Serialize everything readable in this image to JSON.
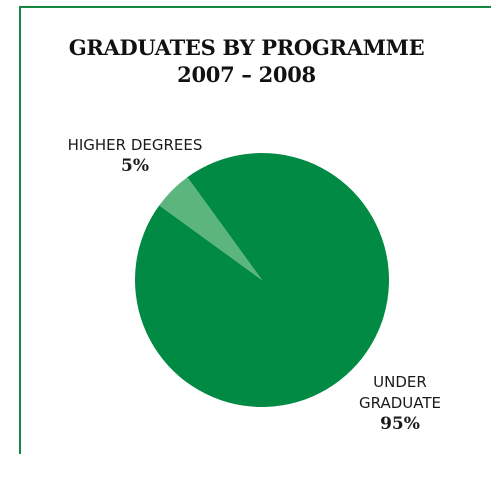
{
  "chart_data": {
    "type": "pie",
    "title": "GRADUATES BY PROGRAMME",
    "subtitle": "2007 – 2008",
    "slices": [
      {
        "name_lines": [
          "UNDER",
          "GRADUATE"
        ],
        "value": 95,
        "label": "95%",
        "color": "#008a43"
      },
      {
        "name_lines": [
          "HIGHER DEGREES"
        ],
        "value": 5,
        "label": "5%",
        "color": "#5bb57c"
      }
    ]
  }
}
